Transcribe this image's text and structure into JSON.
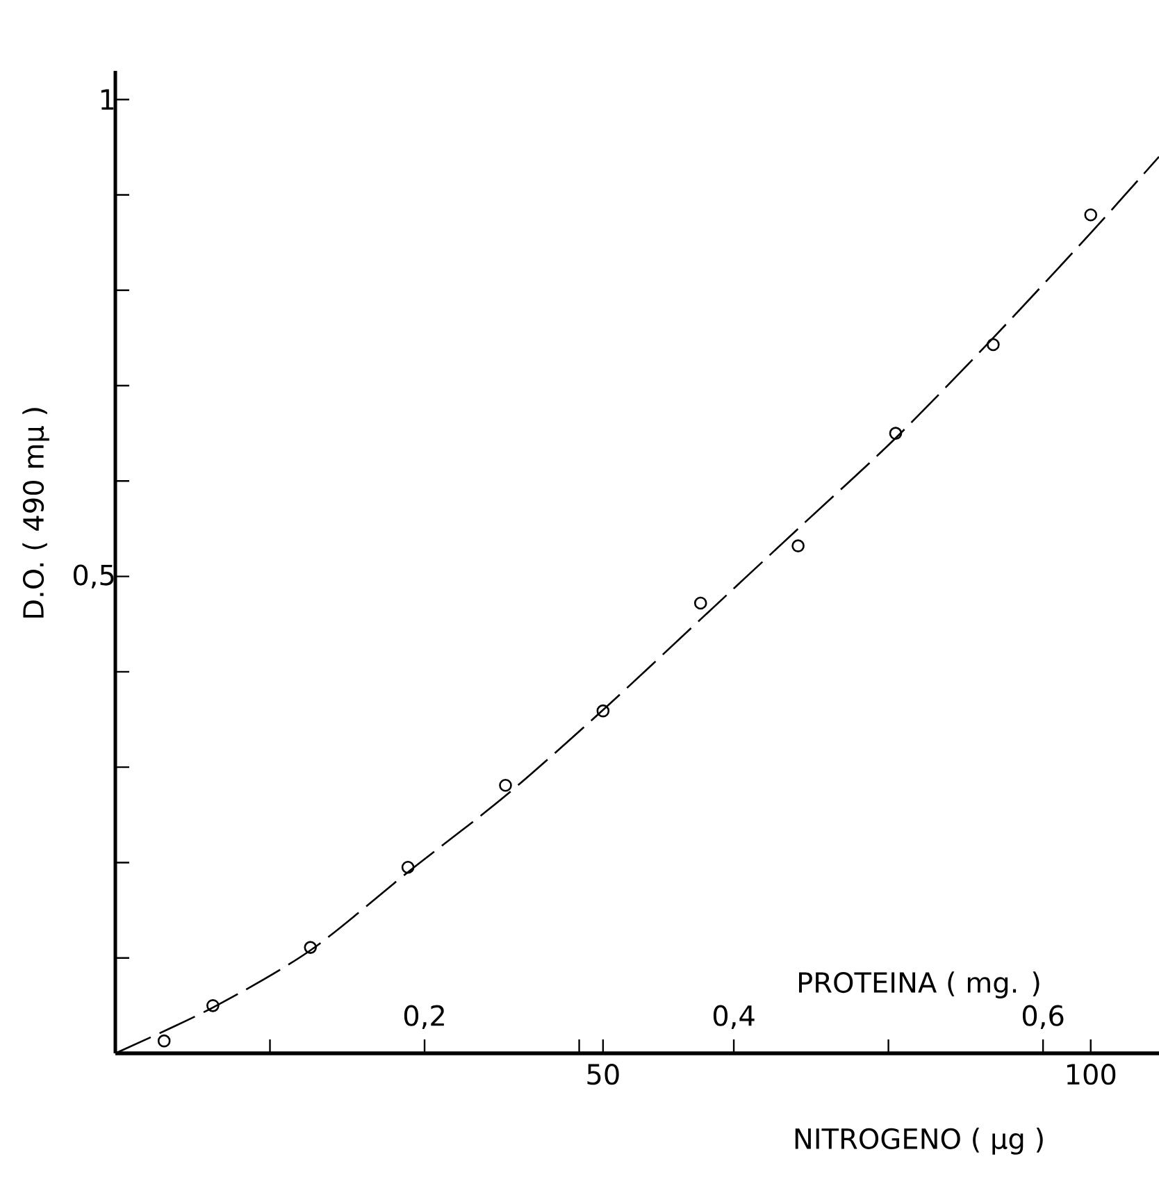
{
  "chart_data": {
    "type": "scatter",
    "xlabel": "NITROGENO   ( μg )",
    "x2label": "PROTEINA   ( mg. )",
    "ylabel": "D.O.     ( 490 mμ )",
    "xlim": [
      0,
      107
    ],
    "xticks": [
      50,
      100
    ],
    "x2lim": [
      0,
      0.675
    ],
    "x2ticks": [
      {
        "value": 0.1,
        "label": null
      },
      {
        "value": 0.2,
        "label": "0,2"
      },
      {
        "value": 0.3,
        "label": null
      },
      {
        "value": 0.4,
        "label": "0,4"
      },
      {
        "value": 0.5,
        "label": null
      },
      {
        "value": 0.6,
        "label": "0,6"
      }
    ],
    "ylim": [
      0,
      1.03
    ],
    "yticks": [
      {
        "value": 0.1,
        "label": null
      },
      {
        "value": 0.2,
        "label": null
      },
      {
        "value": 0.3,
        "label": null
      },
      {
        "value": 0.4,
        "label": null
      },
      {
        "value": 0.5,
        "label": "0,5"
      },
      {
        "value": 0.6,
        "label": null
      },
      {
        "value": 0.7,
        "label": null
      },
      {
        "value": 0.8,
        "label": null
      },
      {
        "value": 0.9,
        "label": null
      },
      1
    ],
    "grid": false,
    "series": [
      {
        "marker": "circle",
        "color": "#000000",
        "x": [
          5,
          10,
          20,
          30,
          40,
          50,
          60,
          70,
          80,
          90,
          100
        ],
        "values": [
          0.013,
          0.05,
          0.111,
          0.195,
          0.281,
          0.359,
          0.472,
          0.532,
          0.65,
          0.743,
          0.879
        ]
      },
      {
        "type": "line",
        "line_style": "dashed",
        "color": "#000000",
        "x": [
          0,
          10,
          20,
          30,
          40,
          50,
          60,
          70,
          80,
          90,
          100,
          107
        ],
        "values": [
          0,
          0.048,
          0.108,
          0.19,
          0.27,
          0.36,
          0.455,
          0.55,
          0.645,
          0.75,
          0.86,
          0.94
        ]
      }
    ]
  }
}
